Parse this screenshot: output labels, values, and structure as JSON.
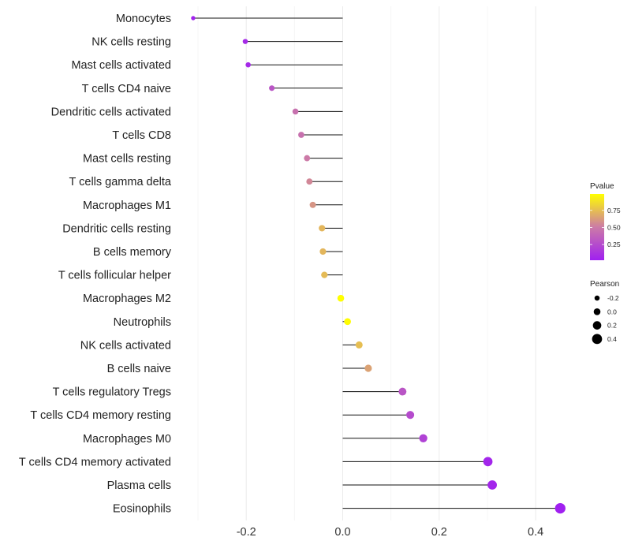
{
  "chart_data": {
    "type": "lollipop",
    "title": "",
    "xlabel": "",
    "ylabel": "",
    "xlim": [
      -0.31,
      0.46
    ],
    "xticks": [
      -0.2,
      0.0,
      0.2,
      0.4
    ],
    "xtick_labels": [
      "-0.2",
      "0.0",
      "0.2",
      "0.4"
    ],
    "grid": true,
    "legend_placement": "right",
    "categories": [
      "Monocytes",
      "NK cells resting",
      "Mast cells activated",
      "T cells CD4 naive",
      "Dendritic cells activated",
      "T cells CD8",
      "Mast cells resting",
      "T cells gamma delta",
      "Macrophages M1",
      "Dendritic cells resting",
      "B cells memory",
      "T cells follicular helper",
      "Macrophages M2",
      "Neutrophils",
      "NK cells activated",
      "B cells naive",
      "T cells regulatory  Tregs ",
      "T cells CD4 memory resting",
      "Macrophages M0",
      "T cells CD4 memory activated",
      "Plasma cells",
      "Eosinophils"
    ],
    "pearson": [
      -0.31,
      -0.202,
      -0.196,
      -0.147,
      -0.098,
      -0.086,
      -0.074,
      -0.069,
      -0.062,
      -0.043,
      -0.041,
      -0.038,
      -0.004,
      0.01,
      0.034,
      0.053,
      0.124,
      0.14,
      0.167,
      0.301,
      0.31,
      0.451
    ],
    "pvalue": [
      0.03,
      0.08,
      0.07,
      0.3,
      0.45,
      0.45,
      0.5,
      0.55,
      0.6,
      0.72,
      0.72,
      0.74,
      0.99,
      0.98,
      0.75,
      0.65,
      0.3,
      0.25,
      0.2,
      0.05,
      0.05,
      0.02
    ],
    "color_legend": {
      "title": "Pvalue",
      "range": [
        0.02,
        0.99
      ],
      "ticks": [
        0.25,
        0.5,
        0.75
      ],
      "tick_labels": [
        "0.25",
        "0.50",
        "0.75"
      ],
      "low_color": "#a020f0",
      "mid_color": "#cc7ba6",
      "high_color": "#ffff00"
    },
    "size_legend": {
      "title": "Pearson",
      "values": [
        -0.2,
        0.0,
        0.2,
        0.4
      ],
      "labels": [
        "-0.2",
        "0.0",
        "0.2",
        "0.4"
      ]
    }
  }
}
